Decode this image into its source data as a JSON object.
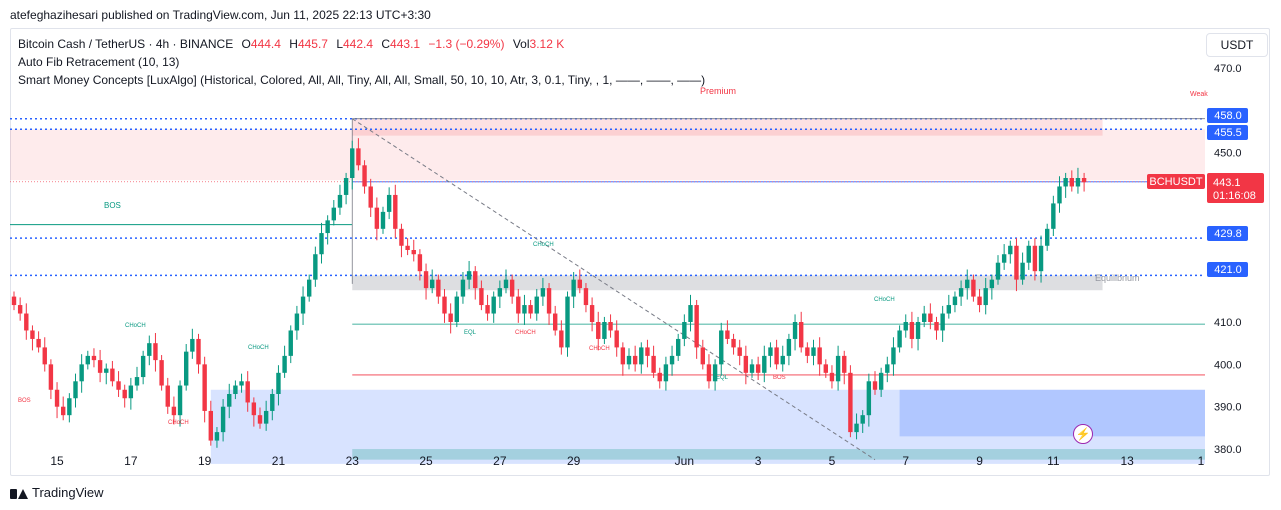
{
  "header": "atefeghazihesari published on TradingView.com, Jun 11, 2025 22:13 UTC+3:30",
  "legend": {
    "symbol_line": "Bitcoin Cash / TetherUS · 4h · BINANCE",
    "o_label": "O",
    "o": "444.4",
    "h_label": "H",
    "h": "445.7",
    "l_label": "L",
    "l": "442.4",
    "c_label": "C",
    "c": "443.1",
    "change": "−1.3 (−0.29%)",
    "vol_label": "Vol",
    "vol": "3.12 K",
    "indicator1": "Auto Fib Retracement (10, 13)",
    "indicator2": "Smart Money Concepts [LuxAlgo] (Historical, Colored, All, All, Tiny, All, All, Small, 50, 10, 10, Atr, 3, 0.1, Tiny, , 1, ——, ——, ——)"
  },
  "currency": "USDT",
  "footer": "TradingView",
  "chart_data": {
    "type": "candlestick",
    "ylim": [
      376,
      478
    ],
    "y_ticks": [
      380.0,
      390.0,
      400.0,
      410.0,
      450.0,
      470.0
    ],
    "x_ticks": [
      {
        "label": "15",
        "i": 7
      },
      {
        "label": "17",
        "i": 19
      },
      {
        "label": "19",
        "i": 31
      },
      {
        "label": "21",
        "i": 43
      },
      {
        "label": "23",
        "i": 55
      },
      {
        "label": "25",
        "i": 67
      },
      {
        "label": "27",
        "i": 79
      },
      {
        "label": "29",
        "i": 91
      },
      {
        "label": "Jun",
        "i": 109
      },
      {
        "label": "3",
        "i": 121
      },
      {
        "label": "5",
        "i": 133
      },
      {
        "label": "7",
        "i": 145
      },
      {
        "label": "9",
        "i": 157
      },
      {
        "label": "11",
        "i": 169
      },
      {
        "label": "13",
        "i": 181
      },
      {
        "label": "1",
        "i": 193
      }
    ],
    "closes": [
      414,
      412,
      408,
      406,
      404,
      400,
      394,
      390,
      388,
      392,
      396,
      400,
      402,
      401,
      398,
      399,
      396,
      394,
      392,
      395,
      397,
      402,
      405,
      401,
      395,
      390,
      388,
      395,
      403,
      406,
      400,
      389,
      382,
      384,
      390,
      393,
      395,
      396,
      391,
      388,
      386,
      389,
      393,
      398,
      402,
      408,
      412,
      416,
      420,
      426,
      431,
      434,
      437,
      440,
      444,
      451,
      447,
      442,
      437,
      432,
      436,
      440,
      432,
      428,
      427,
      426,
      422,
      418,
      420,
      416,
      412,
      410,
      416,
      420,
      422,
      418,
      414,
      412,
      416,
      418,
      420,
      416,
      412,
      414,
      412,
      416,
      418,
      412,
      408,
      404,
      416,
      420,
      418,
      414,
      410,
      406,
      410,
      408,
      404,
      400,
      402,
      400,
      404,
      402,
      398,
      396,
      400,
      402,
      406,
      410,
      414,
      404,
      400,
      396,
      400,
      408,
      406,
      404,
      402,
      398,
      400,
      398,
      402,
      404,
      400,
      402,
      406,
      410,
      404,
      402,
      404,
      400,
      398,
      396,
      402,
      398,
      384,
      386,
      388,
      396,
      394,
      398,
      400,
      404,
      408,
      410,
      406,
      410,
      412,
      410,
      408,
      412,
      414,
      416,
      418,
      420,
      416,
      414,
      418,
      420,
      424,
      426,
      428,
      420,
      424,
      428,
      422,
      428,
      432,
      438,
      442,
      444,
      442,
      444,
      443
    ]
  },
  "axis_labels": {
    "p458": "458.0",
    "p4555": "455.5",
    "p4298": "429.8",
    "p421": "421.0",
    "bch_label": "BCHUSDT",
    "price": "443.1",
    "timer": "01:16:08"
  },
  "annotations": {
    "premium": "Premium",
    "weak": "Weak",
    "equilibrium": "Equilibrium",
    "bos": "BOS",
    "choch": "CHoCH",
    "eql": "EQL"
  },
  "colors": {
    "up": "#089981",
    "down": "#f23645",
    "premium": "#f23645",
    "discount": "#2962ff",
    "fib_blue": "#2962ff",
    "equilibrium": "#787b86"
  }
}
